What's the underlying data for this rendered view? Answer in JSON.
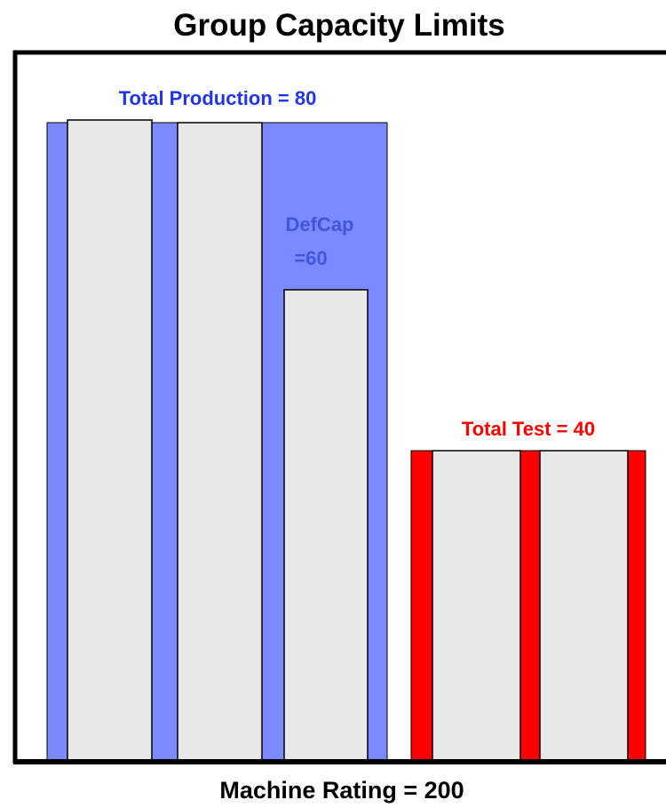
{
  "title": "Group Capacity Limits",
  "production": {
    "label": "Total Production = 80",
    "defcap": [
      "DefCap",
      "=60"
    ]
  },
  "test": {
    "label": "Total Test = 40"
  },
  "footer": "Machine Rating = 200"
}
